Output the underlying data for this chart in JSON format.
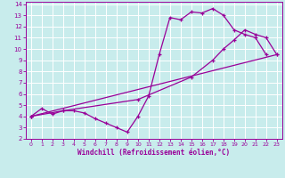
{
  "xlabel": "Windchill (Refroidissement éolien,°C)",
  "bg_color": "#c8ecec",
  "grid_color": "#ffffff",
  "line_color": "#990099",
  "xlim": [
    -0.5,
    23.5
  ],
  "ylim": [
    2,
    14.2
  ],
  "xticks": [
    0,
    1,
    2,
    3,
    4,
    5,
    6,
    7,
    8,
    9,
    10,
    11,
    12,
    13,
    14,
    15,
    16,
    17,
    18,
    19,
    20,
    21,
    22,
    23
  ],
  "yticks": [
    2,
    3,
    4,
    5,
    6,
    7,
    8,
    9,
    10,
    11,
    12,
    13,
    14
  ],
  "line1_x": [
    0,
    1,
    2,
    3,
    4,
    5,
    6,
    7,
    8,
    9,
    10,
    11,
    12,
    13,
    14,
    15,
    16,
    17,
    18,
    19,
    20,
    21,
    22
  ],
  "line1_y": [
    4.0,
    4.7,
    4.2,
    4.5,
    4.5,
    4.3,
    3.8,
    3.4,
    3.0,
    2.6,
    4.0,
    5.8,
    9.5,
    12.8,
    12.6,
    13.3,
    13.2,
    13.6,
    13.0,
    11.7,
    11.3,
    11.0,
    9.5
  ],
  "line2_x": [
    0,
    23
  ],
  "line2_y": [
    4.0,
    9.5
  ],
  "line3_x": [
    0,
    3,
    10,
    15,
    17,
    18,
    19,
    20,
    21,
    22,
    23
  ],
  "line3_y": [
    4.0,
    4.5,
    5.5,
    7.5,
    9.0,
    10.0,
    10.8,
    11.7,
    11.3,
    11.0,
    9.5
  ]
}
